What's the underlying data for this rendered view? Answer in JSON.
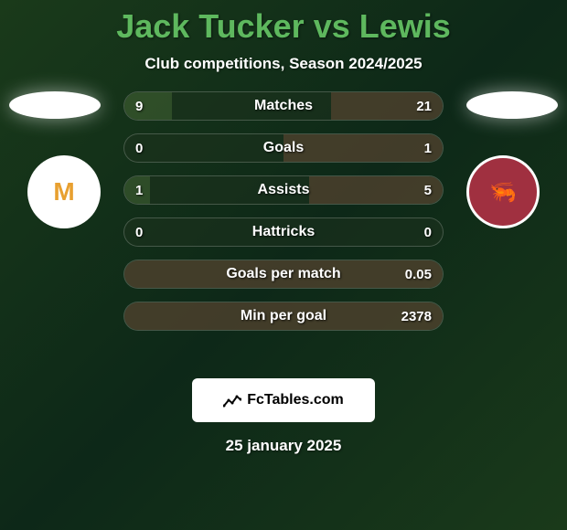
{
  "header": {
    "title": "Jack Tucker vs Lewis",
    "subtitle": "Club competitions, Season 2024/2025"
  },
  "badges": {
    "left": "M",
    "right": "🦐"
  },
  "stats": [
    {
      "label": "Matches",
      "left_value": "9",
      "right_value": "21",
      "left_width_pct": 15,
      "right_width_pct": 35
    },
    {
      "label": "Goals",
      "left_value": "0",
      "right_value": "1",
      "left_width_pct": 0,
      "right_width_pct": 50
    },
    {
      "label": "Assists",
      "left_value": "1",
      "right_value": "5",
      "left_width_pct": 8,
      "right_width_pct": 42
    },
    {
      "label": "Hattricks",
      "left_value": "0",
      "right_value": "0",
      "left_width_pct": 0,
      "right_width_pct": 0
    },
    {
      "label": "Goals per match",
      "left_value": "",
      "right_value": "0.05",
      "left_width_pct": 0,
      "right_width_pct": 100
    },
    {
      "label": "Min per goal",
      "left_value": "",
      "right_value": "2378",
      "left_width_pct": 0,
      "right_width_pct": 100
    }
  ],
  "footer": {
    "brand": "FcTables.com",
    "date": "25 january 2025"
  },
  "colors": {
    "title_color": "#5eb85e",
    "bg_start": "#1a3a1a",
    "bg_mid": "#0d2818",
    "bar_left": "rgba(80,120,60,0.4)",
    "bar_right": "rgba(120,80,60,0.45)",
    "badge_right_bg": "#a03040",
    "footer_bg": "#ffffff"
  }
}
